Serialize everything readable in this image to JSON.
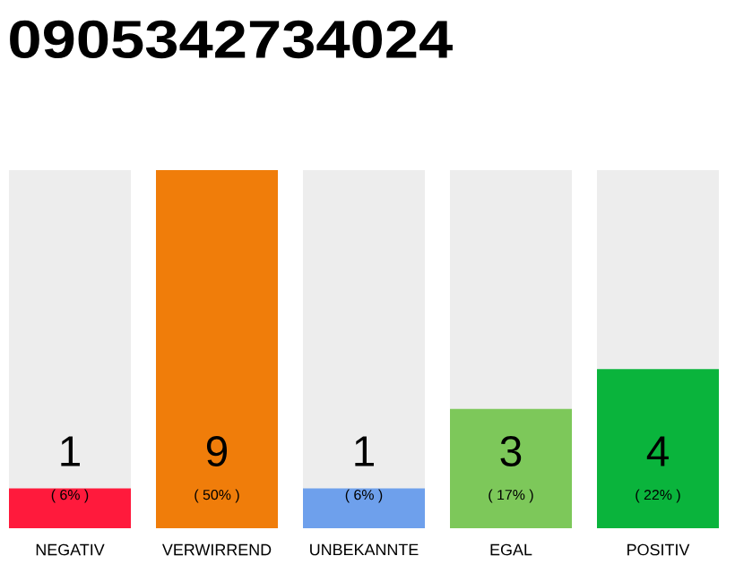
{
  "chart_data": {
    "type": "bar",
    "title": "0905342734024",
    "categories": [
      "NEGATIV",
      "VERWIRREND",
      "UNBEKANNTE",
      "EGAL",
      "POSITIV"
    ],
    "values": [
      1,
      9,
      1,
      3,
      4
    ],
    "colors": [
      "#ff1a3c",
      "#f07d0a",
      "#6ea0ec",
      "#7dc85a",
      "#0ab43c"
    ],
    "ylim": [
      0,
      9
    ],
    "data_labels": true,
    "annotations": [
      "( 6% )",
      "( 50% )",
      "( 6% )",
      "( 17% )",
      "( 22% )"
    ]
  }
}
